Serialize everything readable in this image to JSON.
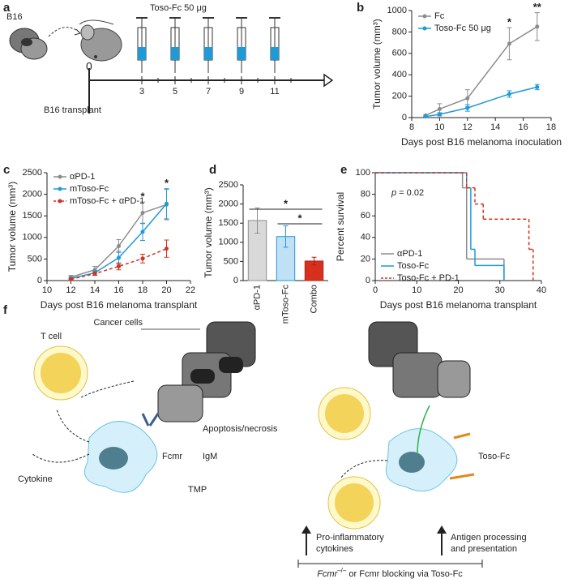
{
  "panel_a": {
    "panel_label": "a",
    "cell_label": "B16",
    "drug": "Toso-Fc 50 μg",
    "origin": "0",
    "days": [
      "3",
      "5",
      "7",
      "9",
      "11"
    ],
    "event": "B16 transplant"
  },
  "chart_data": [
    {
      "type": "line",
      "panel_label": "b",
      "x_label": "Days post B16 melanoma inoculation",
      "y_label": "Tumor volume (mm³)",
      "x": [
        9,
        10,
        12,
        15,
        17
      ],
      "xlim": [
        8,
        18
      ],
      "xticks": [
        8,
        10,
        12,
        14,
        16,
        18
      ],
      "ylim": [
        0,
        1000
      ],
      "yticks": [
        0,
        200,
        400,
        600,
        800,
        1000
      ],
      "legend": "upper left",
      "series": [
        {
          "name": "Fc",
          "color": "#8c8c8c",
          "dash": false,
          "values": [
            20,
            80,
            180,
            690,
            850
          ],
          "errors": [
            10,
            50,
            80,
            150,
            130
          ]
        },
        {
          "name": "Toso-Fc 50 μg",
          "color": "#1f9ad6",
          "dash": false,
          "values": [
            10,
            30,
            90,
            220,
            285
          ],
          "errors": [
            5,
            15,
            30,
            30,
            25
          ]
        }
      ],
      "annotations": [
        {
          "text": "*",
          "x": 15
        },
        {
          "text": "**",
          "x": 17
        }
      ]
    },
    {
      "type": "line",
      "panel_label": "c",
      "x_label": "Days post B16 melanoma transplant",
      "y_label": "Tumor volume (mm³)",
      "x": [
        12,
        14,
        16,
        18,
        20
      ],
      "xlim": [
        10,
        22
      ],
      "xticks": [
        10,
        12,
        14,
        16,
        18,
        20,
        22
      ],
      "ylim": [
        0,
        2500
      ],
      "yticks": [
        0,
        500,
        1000,
        1500,
        2000,
        2500
      ],
      "legend": "upper left",
      "series": [
        {
          "name": "αPD-1",
          "color": "#8c8c8c",
          "dash": false,
          "values": [
            80,
            250,
            800,
            1570,
            1760
          ],
          "errors": [
            40,
            80,
            150,
            250,
            350
          ]
        },
        {
          "name": "mToso-Fc",
          "color": "#1f9ad6",
          "dash": false,
          "values": [
            50,
            180,
            530,
            1130,
            1780
          ],
          "errors": [
            30,
            50,
            150,
            200,
            350
          ]
        },
        {
          "name": "mToso-Fc + αPD-1",
          "color": "#d7301f",
          "dash": true,
          "values": [
            30,
            160,
            330,
            510,
            740
          ],
          "errors": [
            20,
            40,
            80,
            100,
            200
          ]
        }
      ],
      "annotations": [
        {
          "text": "*",
          "x": 18
        },
        {
          "text": "*",
          "x": 20
        }
      ]
    },
    {
      "type": "bar",
      "panel_label": "d",
      "y_label": "Tumor volume (mm³)",
      "categories": [
        "αPD-1",
        "mToso-Fc",
        "Combo"
      ],
      "values": [
        1570,
        1150,
        510
      ],
      "errors": [
        330,
        280,
        100
      ],
      "colors": [
        "#d9d9d9",
        "#bfe0f5",
        "#d7301f"
      ],
      "edge_colors": [
        "#8c8c8c",
        "#1f9ad6",
        "#b0200f"
      ],
      "ylim": [
        0,
        2500
      ],
      "yticks": [
        0,
        500,
        1000,
        1500,
        2000,
        2500
      ],
      "annotations": [
        "*",
        "*"
      ]
    },
    {
      "type": "step",
      "panel_label": "e",
      "x_label": "Days post B16 melanoma transplant",
      "y_label": "Percent survival",
      "xlim": [
        0,
        40
      ],
      "xticks": [
        0,
        10,
        20,
        30,
        40
      ],
      "ylim": [
        0,
        100
      ],
      "yticks": [
        0,
        20,
        40,
        60,
        80,
        100
      ],
      "legend": "lower left",
      "annotation": {
        "symbol": "p",
        "text": " = 0.02"
      },
      "series": [
        {
          "name": "αPD-1",
          "color": "#8c8c8c",
          "dash": false,
          "x": [
            0,
            21,
            22,
            31
          ],
          "values": [
            100,
            86,
            20,
            0
          ]
        },
        {
          "name": "Toso-Fc",
          "color": "#1f9ad6",
          "dash": false,
          "x": [
            0,
            22,
            23,
            24,
            31
          ],
          "values": [
            100,
            86,
            29,
            14,
            0
          ]
        },
        {
          "name": "Toso-Fc + PD-1",
          "color": "#d7301f",
          "dash": true,
          "x": [
            0,
            22,
            24,
            26,
            37,
            38
          ],
          "values": [
            100,
            86,
            71,
            57,
            29,
            0
          ]
        }
      ]
    }
  ],
  "panel_f": {
    "panel_label": "f",
    "labels": [
      "Cancer cells",
      "T cell",
      "Apoptosis/necrosis",
      "IgM",
      "Fcmr",
      "Cytokine",
      "TMP",
      "Toso-Fc",
      "Pro-inflammatory",
      "cytokines",
      "Antigen processing",
      "and presentation"
    ],
    "footer": {
      "gene": "Fcmr",
      "superscript": "–/–",
      "rest": " or Fcmr blocking via Toso-Fc"
    }
  }
}
